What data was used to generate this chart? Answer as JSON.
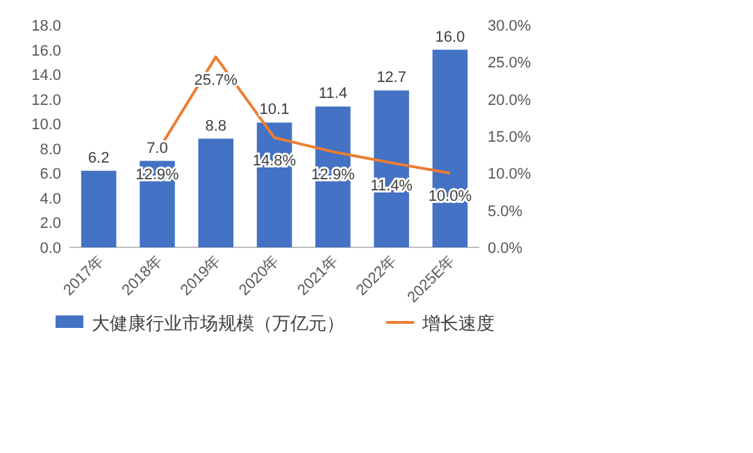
{
  "chart_data": {
    "type": "bar",
    "categories": [
      "2017年",
      "2018年",
      "2019年",
      "2020年",
      "2021年",
      "2022年",
      "2025E年"
    ],
    "ylim": [
      0,
      18
    ],
    "yticks": [
      {
        "value": 0,
        "label": "0.0"
      },
      {
        "value": 2,
        "label": "2.0"
      },
      {
        "value": 4,
        "label": "4.0"
      },
      {
        "value": 6,
        "label": "6.0"
      },
      {
        "value": 8,
        "label": "8.0"
      },
      {
        "value": 10,
        "label": "10.0"
      },
      {
        "value": 12,
        "label": "12.0"
      },
      {
        "value": 14,
        "label": "14.0"
      },
      {
        "value": 16,
        "label": "16.0"
      },
      {
        "value": 18,
        "label": "18.0"
      }
    ],
    "y2lim": [
      0,
      30
    ],
    "y2ticks": [
      {
        "value": 0,
        "label": "0.0%"
      },
      {
        "value": 5,
        "label": "5.0%"
      },
      {
        "value": 10,
        "label": "10.0%"
      },
      {
        "value": 15,
        "label": "15.0%"
      },
      {
        "value": 20,
        "label": "20.0%"
      },
      {
        "value": 25,
        "label": "25.0%"
      },
      {
        "value": 30,
        "label": "30.0%"
      }
    ],
    "legend": "bottom",
    "series": [
      {
        "name": "大健康行业市场规模（万亿元）",
        "color": "#4472c4",
        "values": [
          6.2,
          7.0,
          8.8,
          10.1,
          11.4,
          12.7,
          16.0
        ],
        "value_labels": [
          "6.2",
          "7.0",
          "8.8",
          "10.1",
          "11.4",
          "12.7",
          "16.0"
        ]
      },
      {
        "name": "增长速度",
        "type": "line",
        "axis": "y2",
        "color": "#ed7d31",
        "values": [
          null,
          12.9,
          25.7,
          14.8,
          12.9,
          11.4,
          10.0
        ],
        "value_labels": [
          null,
          "12.9%",
          "25.7%",
          "14.8%",
          "12.9%",
          "11.4%",
          "10.0%"
        ]
      }
    ]
  }
}
